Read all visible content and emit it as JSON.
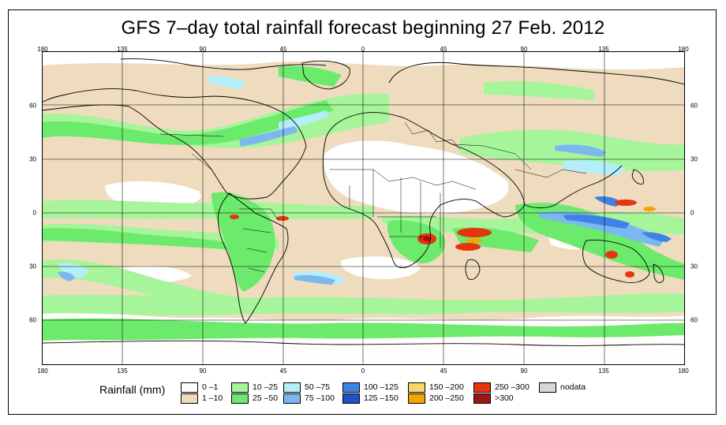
{
  "title": "GFS 7–day total rainfall forecast beginning 27 Feb. 2012",
  "axes": {
    "longitude_ticks": [
      "180",
      "135",
      "90",
      "45",
      "0",
      "45",
      "90",
      "135",
      "180"
    ],
    "latitude_ticks": [
      "60",
      "30",
      "0",
      "30",
      "60"
    ]
  },
  "legend": {
    "label": "Rainfall (mm)",
    "items": [
      {
        "label": "0 –1",
        "color": "#ffffff"
      },
      {
        "label": "1 –10",
        "color": "#efdcbe"
      },
      {
        "label": "10 –25",
        "color": "#a6f59a"
      },
      {
        "label": "25 –50",
        "color": "#6cea6c"
      },
      {
        "label": "50 –75",
        "color": "#b4eef8"
      },
      {
        "label": "75 –100",
        "color": "#7cb8f0"
      },
      {
        "label": "100 –125",
        "color": "#3f82e6"
      },
      {
        "label": "125 –150",
        "color": "#1f52c8"
      },
      {
        "label": "150 –200",
        "color": "#f8d66a"
      },
      {
        "label": "200 –250",
        "color": "#f5a400"
      },
      {
        "label": "250 –300",
        "color": "#e8340e"
      },
      {
        "label": ">300",
        "color": "#a01414"
      },
      {
        "label": "nodata",
        "color": "#d8d8d8"
      }
    ]
  },
  "colors": {
    "tan": "#efdcbe",
    "light_green": "#a6f59a",
    "green": "#6cea6c",
    "light_blue": "#b4eef8",
    "mid_blue": "#7cb8f0",
    "blue": "#3f82e6",
    "dark_blue": "#1f52c8",
    "orange": "#f5a400",
    "red": "#e8340e",
    "dark_red": "#a01414",
    "coast": "#000000",
    "grid": "#000000"
  }
}
